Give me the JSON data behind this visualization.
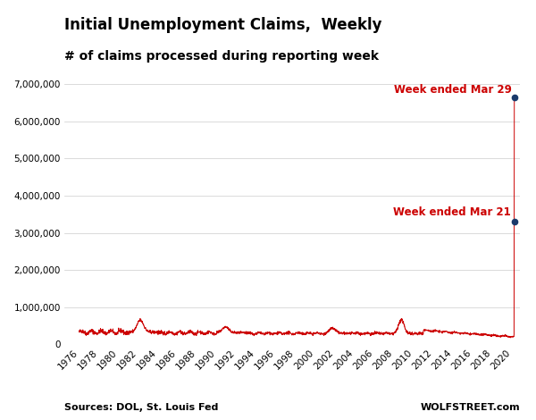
{
  "title": "Initial Unemployment Claims,  Weekly",
  "subtitle": "# of claims processed during reporting week",
  "source_left": "Sources: DOL, St. Louis Fed",
  "source_right": "WOLFSTREET.com",
  "line_color": "#CC0000",
  "dot_color": "#1a3a6b",
  "annotation_color": "#CC0000",
  "background_color": "#ffffff",
  "ylim": [
    0,
    7000000
  ],
  "yticks": [
    0,
    1000000,
    2000000,
    3000000,
    4000000,
    5000000,
    6000000,
    7000000
  ],
  "ytick_labels": [
    "0",
    "1,000,000",
    "2,000,000",
    "3,000,000",
    "4,000,000",
    "5,000,000",
    "6,000,000",
    "7,000,000"
  ],
  "xtick_years": [
    1976,
    1978,
    1980,
    1982,
    1984,
    1986,
    1988,
    1990,
    1992,
    1994,
    1996,
    1998,
    2000,
    2002,
    2004,
    2006,
    2008,
    2010,
    2012,
    2014,
    2016,
    2018,
    2020
  ],
  "xlim_left": 1974.5,
  "xlim_right": 2020.8,
  "mar21_value": 3307000,
  "mar29_value": 6648000,
  "annotation_mar29": "Week ended Mar 29",
  "annotation_mar21": "Week ended Mar 21"
}
